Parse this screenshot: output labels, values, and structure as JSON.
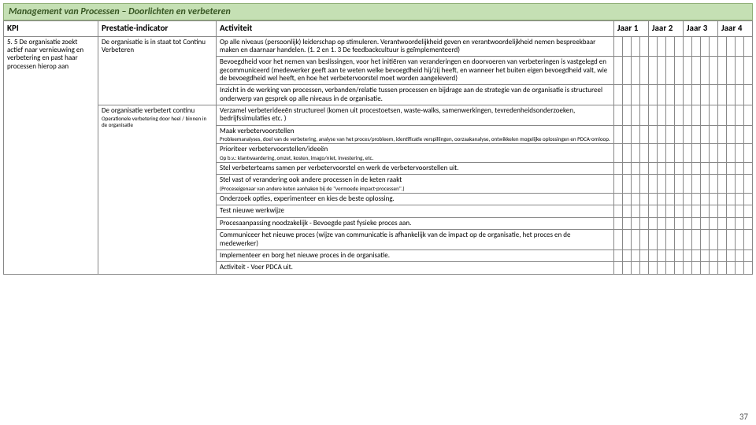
{
  "title": "Management van Processen – Doorlichten en verbeteren",
  "headers": {
    "kpi": "KPI",
    "prestatie": "Prestatie-indicator",
    "activiteit": "Activiteit",
    "jaar1": "Jaar 1",
    "jaar2": "Jaar 2",
    "jaar3": "Jaar 3",
    "jaar4": "Jaar 4"
  },
  "kpi": "5. 5 De organisatie zoekt actief naar vernieuwing en verbetering en past haar processen hierop aan",
  "prestatie1": "De organisatie is in staat tot Continu Verbeteren",
  "prestatie2": "De organisatie verbetert continu",
  "prestatie2_sub": "Operationele verbetering door heel / binnen in de organisatie",
  "rows": [
    {
      "text": "Op alle niveaus (persoonlijk) leiderschap op stimuleren. Verantwoordelijkheid geven en verantwoordelijkheid nemen bespreekbaar maken en daarnaar handelen. (1. 2 en 1. 3 De feedbackcultuur is geïmplementeerd)"
    },
    {
      "text": "Bevoegdheid voor het nemen van beslissingen, voor het initiëren van veranderingen en doorvoeren van verbeteringen is vastgelegd en gecommuniceerd (medewerker geeft aan te weten welke bevoegdheid hij/zij heeft, en wanneer het buiten eigen bevoegdheid valt, wie de bevoegdheid wel heeft, en hoe het verbetervoorstel moet worden aangeleverd)"
    },
    {
      "text": "Inzicht in de werking van processen, verbanden/relatie tussen processen en bijdrage aan de strategie van de organisatie is structureel onderwerp van gesprek op alle niveaus in de organisatie."
    },
    {
      "text": "Verzamel verbeterideeën structureel (komen uit procestoetsen, waste-walks, samenwerkingen, tevredenheidsonderzoeken, bedrijfssimulaties etc. )"
    },
    {
      "text": "Maak verbetervoorstellen",
      "sub": "Probleemanalyses, doel van de verbetering, analyse van het proces/probleem, identificatie verspillingen, oorzaakanalyse, ontwikkelen mogelijke oplossingen en PDCA-omloop."
    },
    {
      "text": "Prioriteer verbetervoorstellen/ideeën",
      "sub": "Op b.v.: klantwaardering, omzet, kosten, imago/niet, investering, etc."
    },
    {
      "text": "Stel verbeterteams samen per verbetervoorstel en werk de verbetervoorstellen uit."
    },
    {
      "text": "Stel vast of verandering ook andere processen in de keten raakt",
      "sub": "(Proceseigenaar van andere keten aanhaken bij de \"vermoede impact-processen\".)"
    },
    {
      "text": "Onderzoek opties, experimenteer en kies de beste oplossing."
    },
    {
      "text": "Test nieuwe werkwijze"
    },
    {
      "text": "Procesaanpassing noodzakelijk - Bevoegde past fysieke proces aan."
    },
    {
      "text": "Communiceer het nieuwe proces (wijze van communicatie is afhankelijk van de impact op de organisatie, het proces en de medewerker)"
    },
    {
      "text": "Implementeer en borg het nieuwe proces in de organisatie."
    },
    {
      "text": "Activiteit - Voer PDCA uit."
    }
  ],
  "page_number": "37"
}
